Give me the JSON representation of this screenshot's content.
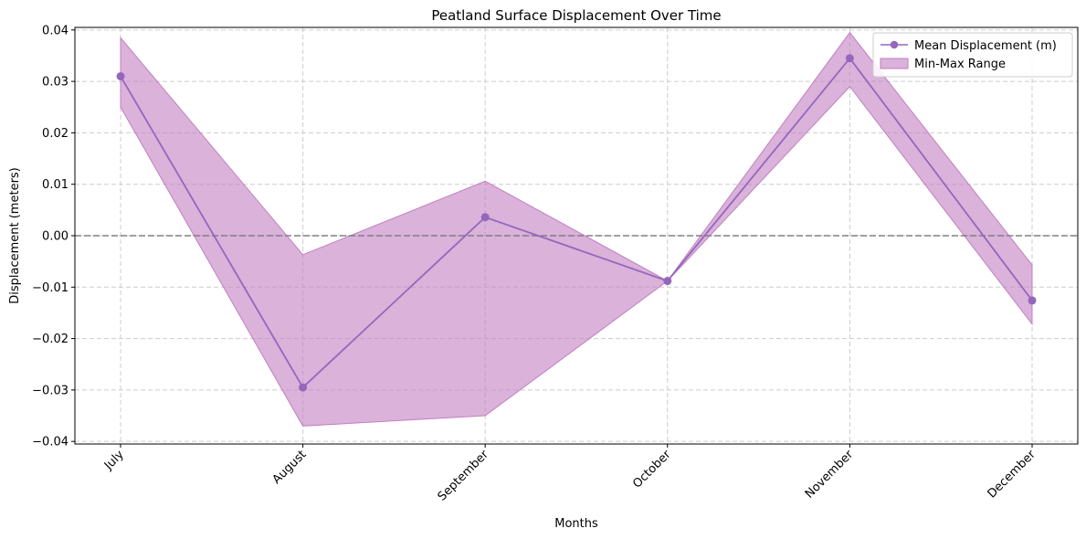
{
  "chart_data": {
    "type": "line",
    "title": "Peatland Surface Displacement Over Time",
    "xlabel": "Months",
    "ylabel": "Displacement (meters)",
    "categories": [
      "July",
      "August",
      "September",
      "October",
      "November",
      "December"
    ],
    "ylim": [
      -0.0405,
      0.0405
    ],
    "yticks": [
      -0.04,
      -0.03,
      -0.02,
      -0.01,
      0.0,
      0.01,
      0.02,
      0.03,
      0.04
    ],
    "ytick_labels": [
      "−0.04",
      "−0.03",
      "−0.02",
      "−0.01",
      "0.00",
      "0.01",
      "0.02",
      "0.03",
      "0.04"
    ],
    "series": [
      {
        "name": "Mean Displacement (m)",
        "kind": "line",
        "values": [
          0.031,
          -0.0295,
          0.0036,
          -0.0088,
          0.0345,
          -0.0126
        ]
      },
      {
        "name": "Min-Max Range",
        "kind": "band",
        "min": [
          0.025,
          -0.037,
          -0.035,
          -0.0088,
          0.029,
          -0.0172
        ],
        "max": [
          0.0385,
          -0.0037,
          0.0106,
          -0.0088,
          0.0395,
          -0.0057
        ]
      }
    ],
    "reference_line": {
      "y": 0.0,
      "color": "#808080",
      "style": "dashed"
    },
    "colors": {
      "line": "#9467bd",
      "band": "#c27fc2"
    },
    "grid": true,
    "legend": "top-right"
  }
}
